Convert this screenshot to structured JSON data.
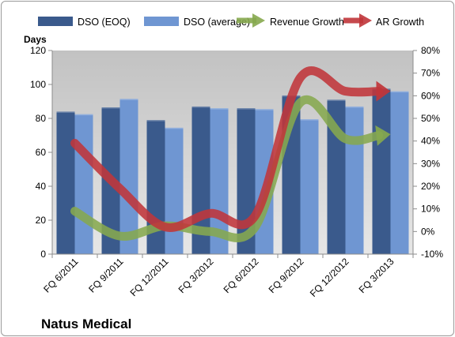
{
  "chart_data": {
    "type": "bar",
    "title": "Natus Medical",
    "ylabel": "Days",
    "y2label": "",
    "categories": [
      "FQ 6/2011",
      "FQ 9/2011",
      "FQ 12/2011",
      "FQ 3/2012",
      "FQ 6/2012",
      "FQ 9/2012",
      "FQ 12/2012",
      "FQ 3/2013"
    ],
    "ylim": [
      0,
      120
    ],
    "yticks": [
      0,
      20,
      40,
      60,
      80,
      100,
      120
    ],
    "y2lim": [
      -10,
      80
    ],
    "y2ticks": [
      "-10%",
      "0%",
      "10%",
      "20%",
      "30%",
      "40%",
      "50%",
      "60%",
      "70%",
      "80%"
    ],
    "y2tick_values": [
      -10,
      0,
      10,
      20,
      30,
      40,
      50,
      60,
      70,
      80
    ],
    "grid": false,
    "legend_position": "top",
    "bar_series": [
      {
        "name": "DSO (EOQ)",
        "values": [
          84,
          86.5,
          79,
          87,
          86,
          93.5,
          91,
          97.5
        ],
        "color": "#3a5a8c"
      },
      {
        "name": "DSO (average)",
        "values": [
          82.5,
          91.5,
          74.5,
          86,
          85.5,
          79.5,
          87,
          96
        ],
        "color": "#6f96d2"
      }
    ],
    "line_series": [
      {
        "name": "Revenue Growth",
        "axis": "secondary",
        "values": [
          9,
          -2,
          2.5,
          0,
          2,
          57,
          41,
          43
        ],
        "color": "#86a84e"
      },
      {
        "name": "AR Growth",
        "axis": "secondary",
        "values": [
          39,
          19,
          2,
          8,
          7,
          68,
          62,
          62
        ],
        "color": "#c0353a"
      }
    ]
  }
}
